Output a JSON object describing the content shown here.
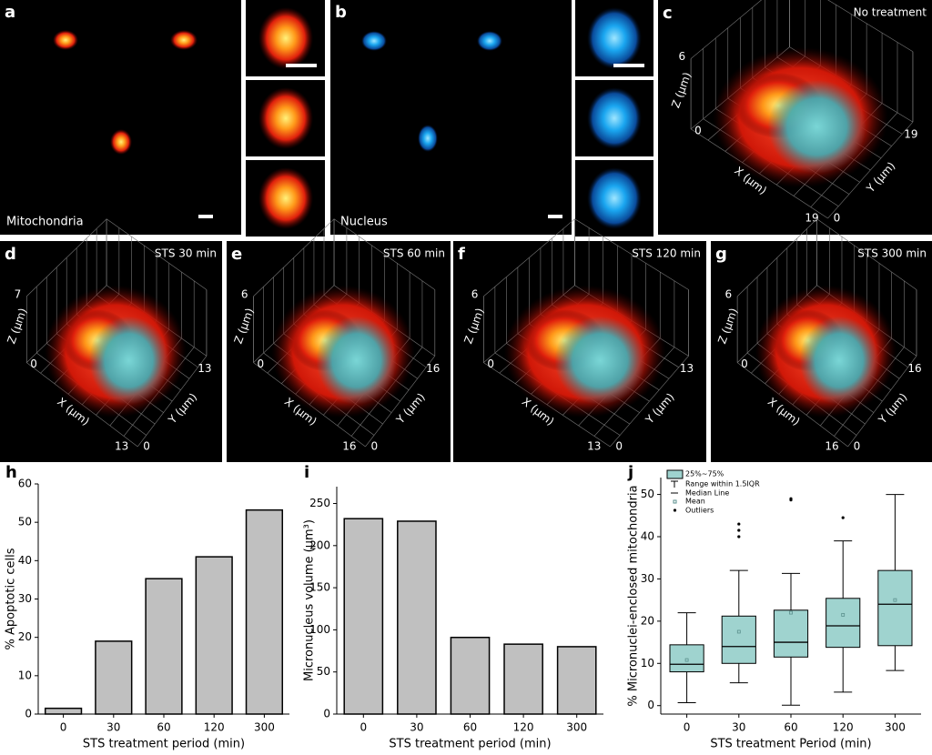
{
  "panels": [
    {
      "letter": "a",
      "label": "Mitochondria"
    },
    {
      "letter": "b",
      "label": "Nucleus"
    },
    {
      "letter": "c",
      "title": "No treatment",
      "axes": {
        "z": "Z (µm)",
        "x": "X (µm)",
        "y": "Y (µm)",
        "z_max": "6",
        "origin": "0",
        "x_max": "19",
        "y_origin": "0",
        "y_max": "19"
      }
    },
    {
      "letter": "d",
      "title": "STS 30 min",
      "axes": {
        "z": "Z (µm)",
        "x": "X (µm)",
        "y": "Y (µm)",
        "z_max": "7",
        "origin": "0",
        "x_max": "13",
        "y_origin": "0",
        "y_max": "13"
      }
    },
    {
      "letter": "e",
      "title": "STS 60 min",
      "axes": {
        "z": "Z (µm)",
        "x": "X (µm)",
        "y": "Y (µm)",
        "z_max": "6",
        "origin": "0",
        "x_max": "16",
        "y_origin": "0",
        "y_max": "16"
      }
    },
    {
      "letter": "f",
      "title": "STS 120 min",
      "axes": {
        "z": "Z (µm)",
        "x": "X (µm)",
        "y": "Y (µm)",
        "z_max": "6",
        "origin": "0",
        "x_max": "13",
        "y_origin": "0",
        "y_max": "13"
      }
    },
    {
      "letter": "g",
      "title": "STS 300 min",
      "axes": {
        "z": "Z (µm)",
        "x": "X (µm)",
        "y": "Y (µm)",
        "z_max": "6",
        "origin": "0",
        "x_max": "16",
        "y_origin": "0",
        "y_max": "16"
      }
    }
  ],
  "chart_data": [
    {
      "type": "bar",
      "panel_label": "h",
      "ylabel": "% Apoptotic cells",
      "xlabel": "STS treatment period (min)",
      "categories": [
        "0",
        "30",
        "60",
        "120",
        "300"
      ],
      "values": [
        1.5,
        19,
        35.3,
        41,
        53.2
      ],
      "color": "#c0c0c0",
      "ylim": [
        0,
        60
      ],
      "yticks": [
        0,
        10,
        20,
        30,
        40,
        50,
        60
      ]
    },
    {
      "type": "bar",
      "panel_label": "i",
      "ylabel": "Micronucleus volume (µm³)",
      "xlabel": "STS treatment period (min)",
      "categories": [
        "0",
        "30",
        "60",
        "120",
        "300"
      ],
      "values": [
        232,
        229,
        91,
        83,
        80
      ],
      "color": "#c0c0c0",
      "ylim": [
        0,
        270
      ],
      "yticks": [
        0,
        50,
        100,
        150,
        200,
        250
      ]
    },
    {
      "type": "box",
      "panel_label": "j",
      "ylabel": "% Micronuclei-enclosed mitochondria",
      "xlabel": "STS treatment Period (min)",
      "categories": [
        "0",
        "30",
        "60",
        "120",
        "300"
      ],
      "color": "#9fd3cf",
      "boxes": [
        {
          "low": 0.7,
          "q1": 8,
          "median": 9.8,
          "q3": 14.4,
          "high": 22,
          "mean": 10.8,
          "outliers": []
        },
        {
          "low": 5.4,
          "q1": 10,
          "median": 14,
          "q3": 21.2,
          "high": 32,
          "mean": 17.5,
          "outliers": [
            40,
            41.5,
            43
          ]
        },
        {
          "low": 0.1,
          "q1": 11.5,
          "median": 15,
          "q3": 22.6,
          "high": 31.3,
          "mean": 22,
          "outliers": [
            48.7,
            49
          ]
        },
        {
          "low": 3.2,
          "q1": 13.8,
          "median": 18.9,
          "q3": 25.4,
          "high": 39,
          "mean": 21.5,
          "outliers": [
            44.5
          ]
        },
        {
          "low": 8.3,
          "q1": 14.2,
          "median": 24,
          "q3": 32,
          "high": 50,
          "mean": 25,
          "outliers": []
        }
      ],
      "legend": [
        "25%~75%",
        "Range within 1.5IQR",
        "Median Line",
        "Mean",
        "Outliers"
      ],
      "ylim": [
        -2,
        54
      ],
      "yticks": [
        0,
        10,
        20,
        30,
        40,
        50
      ]
    }
  ]
}
